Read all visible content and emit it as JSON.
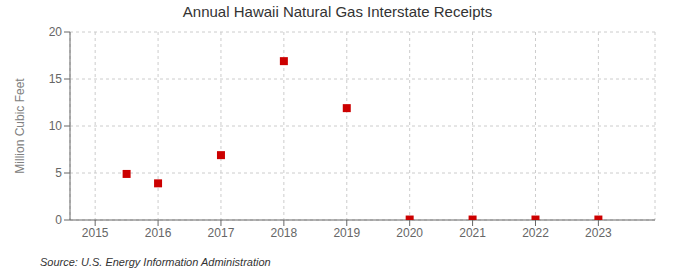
{
  "chart_data": {
    "type": "scatter",
    "title": "Annual Hawaii Natural Gas Interstate Receipts",
    "ylabel": "Million Cubic Feet",
    "annotation": "Source: U.S. Energy Information Administration",
    "x": [
      2015.5,
      2016,
      2017,
      2018,
      2019,
      2020,
      2021,
      2022,
      2023
    ],
    "values": [
      4.9,
      3.9,
      6.9,
      16.9,
      11.9,
      0.05,
      0.05,
      0.05,
      0.05
    ],
    "color": "#cc0000",
    "marker": "square",
    "xlim": [
      2014.6,
      2023.9
    ],
    "xticks": [
      2015,
      2016,
      2017,
      2018,
      2019,
      2020,
      2021,
      2022,
      2023
    ],
    "ylim": [
      0,
      20
    ],
    "yticks": [
      0,
      5,
      10,
      15,
      20
    ],
    "grid": true
  }
}
